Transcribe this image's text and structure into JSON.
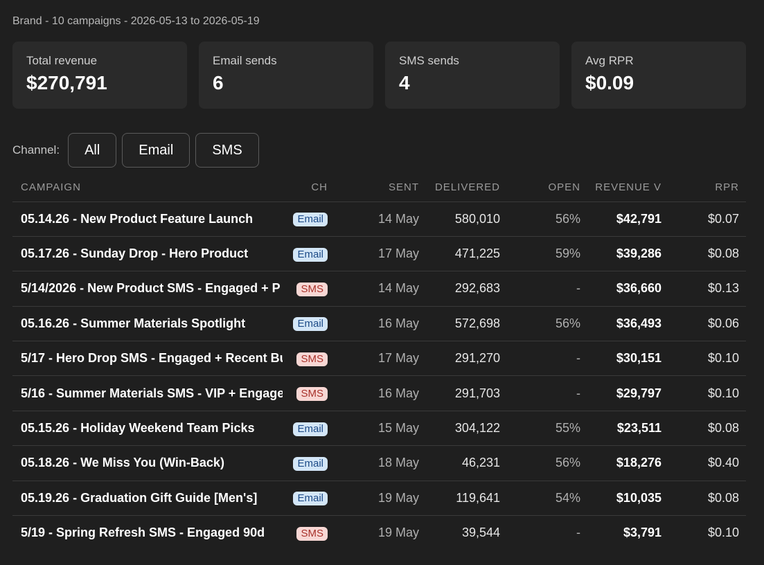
{
  "header": {
    "subtitle": "Brand - 10 campaigns - 2026-05-13 to 2026-05-19"
  },
  "cards": [
    {
      "label": "Total revenue",
      "value": "$270,791"
    },
    {
      "label": "Email sends",
      "value": "6"
    },
    {
      "label": "SMS sends",
      "value": "4"
    },
    {
      "label": "Avg RPR",
      "value": "$0.09"
    }
  ],
  "filters": {
    "label": "Channel:",
    "options": [
      "All",
      "Email",
      "SMS"
    ]
  },
  "table": {
    "columns": [
      "CAMPAIGN",
      "CH",
      "SENT",
      "DELIVERED",
      "OPEN",
      "REVENUE V",
      "RPR"
    ],
    "rows": [
      {
        "name": "05.14.26 - New Product Feature Launch",
        "channel": "Email",
        "sent": "14 May",
        "delivered": "580,010",
        "open": "56%",
        "revenue": "$42,791",
        "rpr": "$0.07"
      },
      {
        "name": "05.17.26 - Sunday Drop - Hero Product",
        "channel": "Email",
        "sent": "17 May",
        "delivered": "471,225",
        "open": "59%",
        "revenue": "$39,286",
        "rpr": "$0.08"
      },
      {
        "name": "5/14/2026 - New Product SMS - Engaged + P",
        "channel": "SMS",
        "sent": "14 May",
        "delivered": "292,683",
        "open": "-",
        "revenue": "$36,660",
        "rpr": "$0.13"
      },
      {
        "name": "05.16.26 - Summer Materials Spotlight",
        "channel": "Email",
        "sent": "16 May",
        "delivered": "572,698",
        "open": "56%",
        "revenue": "$36,493",
        "rpr": "$0.06"
      },
      {
        "name": "5/17 - Hero Drop SMS - Engaged + Recent Bu",
        "channel": "SMS",
        "sent": "17 May",
        "delivered": "291,270",
        "open": "-",
        "revenue": "$30,151",
        "rpr": "$0.10"
      },
      {
        "name": "5/16 - Summer Materials SMS - VIP + Engage",
        "channel": "SMS",
        "sent": "16 May",
        "delivered": "291,703",
        "open": "-",
        "revenue": "$29,797",
        "rpr": "$0.10"
      },
      {
        "name": "05.15.26 - Holiday Weekend Team Picks",
        "channel": "Email",
        "sent": "15 May",
        "delivered": "304,122",
        "open": "55%",
        "revenue": "$23,511",
        "rpr": "$0.08"
      },
      {
        "name": "05.18.26 - We Miss You (Win-Back)",
        "channel": "Email",
        "sent": "18 May",
        "delivered": "46,231",
        "open": "56%",
        "revenue": "$18,276",
        "rpr": "$0.40"
      },
      {
        "name": "05.19.26 - Graduation Gift Guide [Men's]",
        "channel": "Email",
        "sent": "19 May",
        "delivered": "119,641",
        "open": "54%",
        "revenue": "$10,035",
        "rpr": "$0.08"
      },
      {
        "name": "5/19 - Spring Refresh SMS - Engaged 90d",
        "channel": "SMS",
        "sent": "19 May",
        "delivered": "39,544",
        "open": "-",
        "revenue": "$3,791",
        "rpr": "$0.10"
      }
    ]
  },
  "colors": {
    "background": "#1f1f1f",
    "card": "#2a2a2a",
    "email_badge_bg": "#d3e6f7",
    "email_badge_fg": "#1c4a86",
    "sms_badge_bg": "#f8d7d4",
    "sms_badge_fg": "#a8322b"
  }
}
